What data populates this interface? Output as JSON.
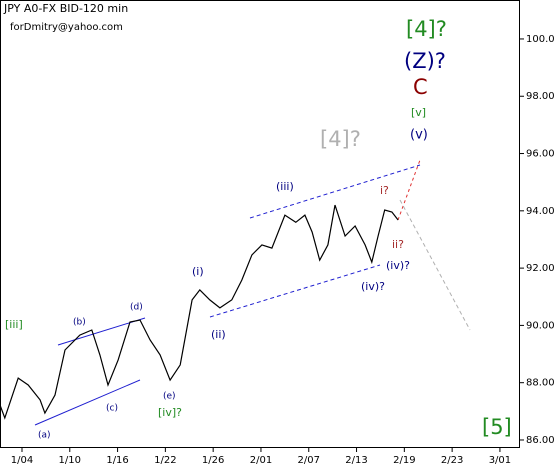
{
  "chart_data": {
    "type": "line",
    "title": "JPY A0-FX BID-120 min",
    "subtitle": "forDmitry@yahoo.com",
    "color": "#000000",
    "x": [
      -0.46,
      -0.36,
      -0.08,
      0.13,
      0.38,
      0.48,
      0.69,
      0.9,
      1.21,
      1.46,
      1.63,
      1.8,
      2.01,
      2.26,
      2.47,
      2.68,
      2.89,
      3.1,
      3.31,
      3.56,
      3.72,
      3.93,
      4.14,
      4.39,
      4.6,
      4.81,
      5.02,
      5.23,
      5.5,
      5.73,
      5.92,
      6.07,
      6.23,
      6.4,
      6.55,
      6.76,
      6.97,
      7.18,
      7.32,
      7.45,
      7.59,
      7.74,
      7.87
    ],
    "values": [
      87.22,
      86.77,
      88.16,
      87.92,
      87.4,
      86.94,
      87.57,
      89.14,
      89.66,
      89.84,
      88.97,
      87.92,
      88.79,
      90.12,
      90.19,
      89.49,
      88.97,
      88.09,
      88.62,
      90.89,
      91.24,
      90.89,
      90.61,
      90.89,
      91.58,
      92.46,
      92.81,
      92.7,
      93.85,
      93.6,
      93.85,
      93.26,
      92.28,
      92.81,
      94.2,
      93.12,
      93.47,
      92.81,
      92.21,
      93.12,
      94.03,
      93.96,
      93.68
    ],
    "xlim": [
      -0.46,
      10.42
    ],
    "xticks": [
      {
        "value": 0,
        "label": "1/04"
      },
      {
        "value": 1,
        "label": "1/10"
      },
      {
        "value": 2,
        "label": "1/16"
      },
      {
        "value": 3,
        "label": "1/22"
      },
      {
        "value": 4,
        "label": "1/26"
      },
      {
        "value": 5,
        "label": "2/01"
      },
      {
        "value": 6,
        "label": "2/07"
      },
      {
        "value": 7,
        "label": "2/13"
      },
      {
        "value": 8,
        "label": "2/19"
      },
      {
        "value": 9,
        "label": "2/23"
      },
      {
        "value": 10,
        "label": "3/01"
      }
    ],
    "ylim": [
      85.72,
      101.36
    ],
    "yticks": [
      {
        "value": 86,
        "label": "86.00"
      },
      {
        "value": 88,
        "label": "88.00"
      },
      {
        "value": 90,
        "label": "90.00"
      },
      {
        "value": 92,
        "label": "92.00"
      },
      {
        "value": 94,
        "label": "94.00"
      },
      {
        "value": 96,
        "label": "96.00"
      },
      {
        "value": 98,
        "label": "98.00"
      },
      {
        "value": 100,
        "label": "100.00"
      }
    ],
    "annotations": [
      {
        "text": "[iii]",
        "color": "#228b22"
      },
      {
        "text": "(a)",
        "color": "#000080"
      },
      {
        "text": "(b)",
        "color": "#000080"
      },
      {
        "text": "(c)",
        "color": "#000080"
      },
      {
        "text": "(d)",
        "color": "#000080"
      },
      {
        "text": "(e)",
        "color": "#000080"
      },
      {
        "text": "[iv]?",
        "color": "#228b22"
      },
      {
        "text": "(i)",
        "color": "#000080"
      },
      {
        "text": "(ii)",
        "color": "#000080"
      },
      {
        "text": "(iii)",
        "color": "#000080"
      },
      {
        "text": "(iv)?",
        "color": "#000080"
      },
      {
        "text": "(iv)?",
        "color": "#000080"
      },
      {
        "text": "i?",
        "color": "#a52a2a"
      },
      {
        "text": "ii?",
        "color": "#a52a2a"
      },
      {
        "text": "[4]?",
        "color": "#b0b0b0"
      },
      {
        "text": "[v]",
        "color": "#228b22"
      },
      {
        "text": "(v)",
        "color": "#000080"
      },
      {
        "text": "C",
        "color": "#8b0000"
      },
      {
        "text": "(Z)?",
        "color": "#000080"
      },
      {
        "text": "[4]?",
        "color": "#228b22"
      },
      {
        "text": "[5]",
        "color": "#228b22"
      }
    ]
  }
}
